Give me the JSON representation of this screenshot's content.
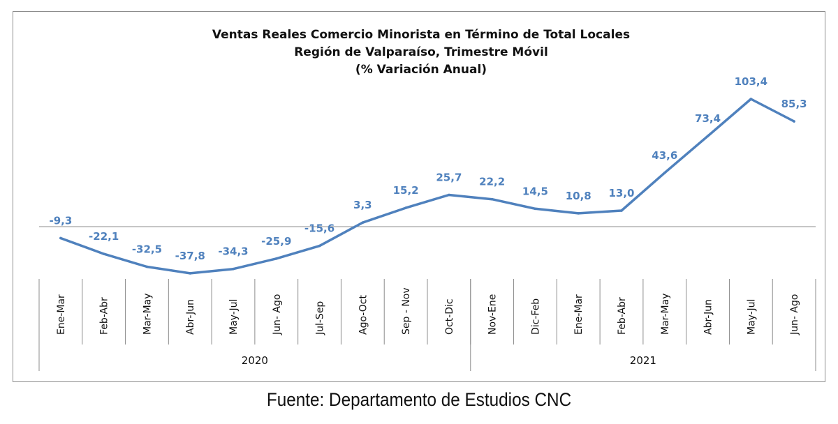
{
  "chart_data": {
    "type": "line",
    "title_lines": [
      "Ventas Reales Comercio Minorista  en Término de Total Locales",
      "Región de Valparaíso, Trimestre Móvil",
      "(% Variación Anual)"
    ],
    "categories": [
      "Ene-Mar",
      "Feb-Abr",
      "Mar-May",
      "Abr-Jun",
      "May-Jul",
      "Jun- Ago",
      "Jul-Sep",
      "Ago-Oct",
      "Sep - Nov",
      "Oct-Dic",
      "Nov-Ene",
      "Dic-Feb",
      "Ene-Mar",
      "Feb-Abr",
      "Mar-May",
      "Abr-Jun",
      "May-Jul",
      "Jun- Ago"
    ],
    "values": [
      -9.3,
      -22.1,
      -32.5,
      -37.8,
      -34.3,
      -25.9,
      -15.6,
      3.3,
      15.2,
      25.7,
      22.2,
      14.5,
      10.8,
      13.0,
      43.6,
      73.4,
      103.4,
      85.3
    ],
    "value_labels": [
      "-9,3",
      "-22,1",
      "-32,5",
      "-37,8",
      "-34,3",
      "-25,9",
      "-15,6",
      "3,3",
      "15,2",
      "25,7",
      "22,2",
      "14,5",
      "10,8",
      "13,0",
      "43,6",
      "73,4",
      "103,4",
      "85,3"
    ],
    "groups": [
      {
        "label": "2020",
        "count": 10
      },
      {
        "label": "2021",
        "count": 8
      }
    ],
    "series_color": "#4f81bd",
    "ylim": [
      -37.8,
      103.4
    ]
  },
  "source": "Fuente: Departamento de Estudios CNC"
}
